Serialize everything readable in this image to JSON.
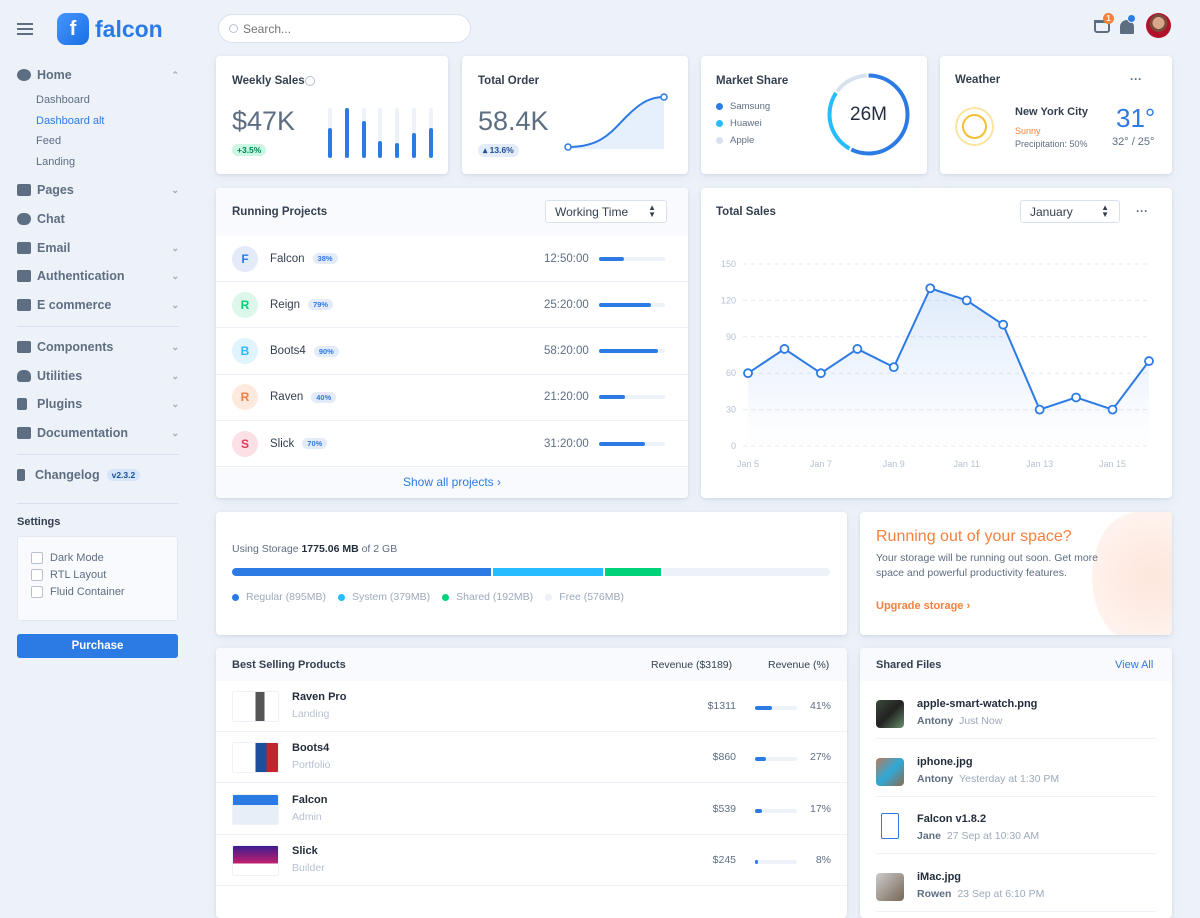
{
  "brand": {
    "name": "falcon"
  },
  "search": {
    "placeholder": "Search..."
  },
  "topbar": {
    "cart_count": "1"
  },
  "sidebar": {
    "home": "Home",
    "subitems": [
      "Dashboard",
      "Dashboard alt",
      "Feed",
      "Landing"
    ],
    "active_sub": "Dashboard alt",
    "items": [
      {
        "label": "Pages",
        "icon": "pages-icon"
      },
      {
        "label": "Chat",
        "icon": "chat-icon"
      },
      {
        "label": "Email",
        "icon": "email-icon"
      },
      {
        "label": "Authentication",
        "icon": "lock-icon"
      },
      {
        "label": "E commerce",
        "icon": "cart-icon"
      }
    ],
    "items2": [
      {
        "label": "Components",
        "icon": "puzzle-icon"
      },
      {
        "label": "Utilities",
        "icon": "fire-icon"
      },
      {
        "label": "Plugins",
        "icon": "plug-icon"
      },
      {
        "label": "Documentation",
        "icon": "book-icon"
      }
    ],
    "changelog": "Changelog",
    "version": "v2.3.2",
    "settings_title": "Settings",
    "settings": [
      "Dark Mode",
      "RTL Layout",
      "Fluid Container"
    ],
    "purchase": "Purchase"
  },
  "weekly_sales": {
    "title": "Weekly Sales",
    "value": "$47K",
    "change": "+3.5%",
    "bars": [
      0.6,
      1.0,
      0.75,
      0.35,
      0.3,
      0.5,
      0.6
    ]
  },
  "total_order": {
    "title": "Total Order",
    "value": "58.4K",
    "change": "13.6%"
  },
  "market_share": {
    "title": "Market Share",
    "center": "26M",
    "legend": [
      {
        "name": "Samsung",
        "color": "#2c7be5",
        "share": 58
      },
      {
        "name": "Huawei",
        "color": "#27bcfd",
        "share": 27
      },
      {
        "name": "Apple",
        "color": "#d8e2ef",
        "share": 15
      }
    ]
  },
  "weather": {
    "title": "Weather",
    "city": "New York City",
    "condition": "Sunny",
    "precipitation": "Precipitation: 50%",
    "temp": "31°",
    "range": "32° / 25°"
  },
  "running_projects": {
    "title": "Running Projects",
    "select": "Working Time",
    "show_all": "Show all projects",
    "projects": [
      {
        "initial": "F",
        "name": "Falcon",
        "pct": "38%",
        "progress": 38,
        "time": "12:50:00",
        "color": "#2c7be5",
        "bg": "#e3ebf8"
      },
      {
        "initial": "R",
        "name": "Reign",
        "pct": "79%",
        "progress": 79,
        "time": "25:20:00",
        "color": "#00d27a",
        "bg": "#ddf7ea"
      },
      {
        "initial": "B",
        "name": "Boots4",
        "pct": "90%",
        "progress": 90,
        "time": "58:20:00",
        "color": "#27bcfd",
        "bg": "#dff4fd"
      },
      {
        "initial": "R",
        "name": "Raven",
        "pct": "40%",
        "progress": 40,
        "time": "21:20:00",
        "color": "#f5803e",
        "bg": "#fde9de"
      },
      {
        "initial": "S",
        "name": "Slick",
        "pct": "70%",
        "progress": 70,
        "time": "31:20:00",
        "color": "#e63757",
        "bg": "#fbe1e5"
      }
    ]
  },
  "total_sales": {
    "title": "Total Sales",
    "select": "January"
  },
  "chart_data": {
    "type": "line",
    "title": "Total Sales",
    "x": [
      "Jan 5",
      "Jan 6",
      "Jan 7",
      "Jan 8",
      "Jan 9",
      "Jan 10",
      "Jan 11",
      "Jan 12",
      "Jan 13",
      "Jan 14",
      "Jan 15",
      "Jan 16"
    ],
    "values": [
      60,
      80,
      60,
      80,
      65,
      130,
      120,
      100,
      30,
      40,
      30,
      70
    ],
    "xticks": [
      "Jan 5",
      "Jan 7",
      "Jan 9",
      "Jan 11",
      "Jan 13",
      "Jan 15"
    ],
    "yticks": [
      0,
      30,
      60,
      90,
      120,
      150
    ],
    "ylim": [
      0,
      150
    ],
    "grid": true,
    "color": "#2c7be5"
  },
  "storage": {
    "prefix": "Using Storage",
    "used": "1775.06 MB",
    "suffix": "of 2 GB",
    "segments": [
      {
        "label": "Regular (895MB)",
        "mb": 895,
        "color": "#2c7be5"
      },
      {
        "label": "System (379MB)",
        "mb": 379,
        "color": "#27bcfd"
      },
      {
        "label": "Shared (192MB)",
        "mb": 192,
        "color": "#00d27a"
      },
      {
        "label": "Free (576MB)",
        "mb": 576,
        "color": "#edf2f9"
      }
    ]
  },
  "promo": {
    "title": "Running out of your space?",
    "text": "Your storage will be running out soon. Get more space and powerful productivity features.",
    "link": "Upgrade storage"
  },
  "best_selling": {
    "title": "Best Selling Products",
    "col_revenue": "Revenue ($3189)",
    "col_pct": "Revenue (%)",
    "products": [
      {
        "name": "Raven Pro",
        "type": "Landing",
        "revenue": "$1311",
        "pct": "41%",
        "progress": 41
      },
      {
        "name": "Boots4",
        "type": "Portfolio",
        "revenue": "$860",
        "pct": "27%",
        "progress": 27
      },
      {
        "name": "Falcon",
        "type": "Admin",
        "revenue": "$539",
        "pct": "17%",
        "progress": 17
      },
      {
        "name": "Slick",
        "type": "Builder",
        "revenue": "$245",
        "pct": "8%",
        "progress": 8
      }
    ]
  },
  "shared_files": {
    "title": "Shared Files",
    "view_all": "View All",
    "files": [
      {
        "name": "apple-smart-watch.png",
        "user": "Antony",
        "time": "Just Now"
      },
      {
        "name": "iphone.jpg",
        "user": "Antony",
        "time": "Yesterday at 1:30 PM"
      },
      {
        "name": "Falcon v1.8.2",
        "user": "Jane",
        "time": "27 Sep at 10:30 AM"
      },
      {
        "name": "iMac.jpg",
        "user": "Rowen",
        "time": "23 Sep at 6:10 PM"
      }
    ]
  }
}
